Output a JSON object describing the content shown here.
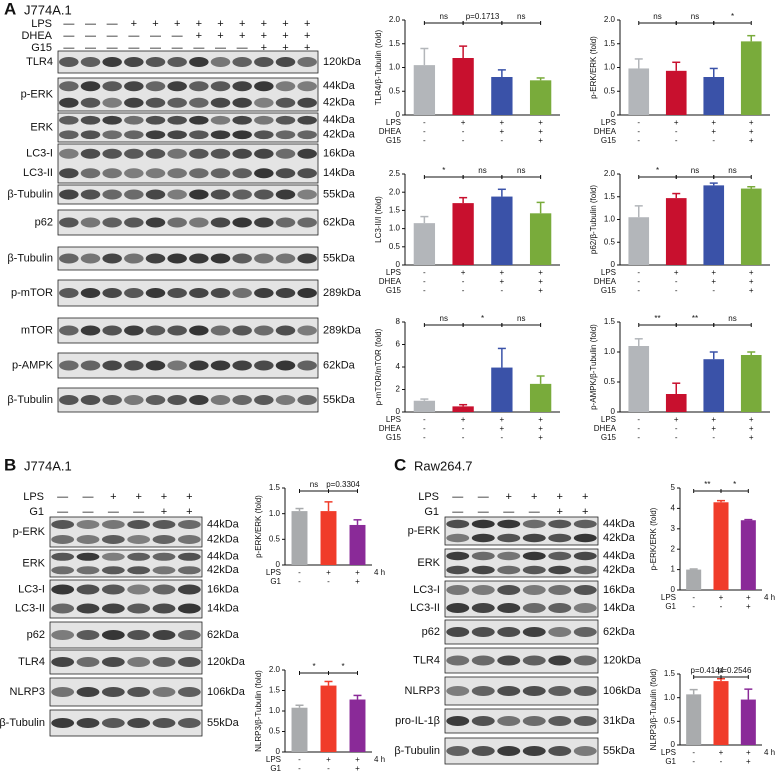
{
  "panels": [
    {
      "label": "A",
      "cell_line": "J774A.1",
      "conditions": [
        {
          "name": "LPS",
          "signs": [
            "—",
            "—",
            "—",
            "+",
            "+",
            "+",
            "+",
            "+",
            "+",
            "+",
            "+",
            "+"
          ]
        },
        {
          "name": "DHEA",
          "signs": [
            "—",
            "—",
            "—",
            "—",
            "—",
            "—",
            "+",
            "+",
            "+",
            "+",
            "+",
            "+"
          ]
        },
        {
          "name": "G15",
          "signs": [
            "—",
            "—",
            "—",
            "—",
            "—",
            "—",
            "—",
            "—",
            "—",
            "+",
            "+",
            "+"
          ]
        }
      ],
      "blots": [
        {
          "proteins": [
            "TLR4"
          ],
          "sizes": [
            "120kDa"
          ]
        },
        {
          "proteins": [
            "p-ERK"
          ],
          "sizes": [
            "44kDa",
            "42kDa"
          ]
        },
        {
          "proteins": [
            "ERK"
          ],
          "sizes": [
            "44kDa",
            "42kDa"
          ]
        },
        {
          "proteins": [
            "LC3-I",
            "LC3-II"
          ],
          "sizes": [
            "16kDa",
            "14kDa"
          ]
        },
        {
          "proteins": [
            "β-Tubulin"
          ],
          "sizes": [
            "55kDa"
          ]
        },
        {
          "proteins": [
            "p62"
          ],
          "sizes": [
            "62kDa"
          ]
        },
        {
          "proteins": [
            "β-Tubulin"
          ],
          "sizes": [
            "55kDa"
          ]
        },
        {
          "proteins": [
            "p-mTOR"
          ],
          "sizes": [
            "289kDa"
          ]
        },
        {
          "proteins": [
            "mTOR"
          ],
          "sizes": [
            "289kDa"
          ]
        },
        {
          "proteins": [
            "p-AMPK"
          ],
          "sizes": [
            "62kDa"
          ]
        },
        {
          "proteins": [
            "β-Tubulin"
          ],
          "sizes": [
            "55kDa"
          ]
        }
      ],
      "charts": [
        {
          "type": "bar",
          "ylabel": "TLR4/β-Tubulin (fold)",
          "ylim": [
            0,
            2
          ],
          "yticks": [
            0,
            0.5,
            {
              "value": 1,
              "label": "1.0"
            },
            1.5,
            {
              "value": 2,
              "label": "2.0"
            }
          ],
          "colors": [
            "#b3b6ba",
            "#c8102e",
            "#3a52a8",
            "#79ab3b"
          ],
          "values": [
            1.05,
            1.2,
            0.8,
            0.73
          ],
          "errors": [
            0.35,
            0.25,
            0.15,
            0.05
          ],
          "significance": [
            "ns",
            "p=0.1713",
            "ns"
          ],
          "conditions": [
            {
              "name": "LPS",
              "signs": [
                "-",
                "+",
                "+",
                "+"
              ]
            },
            {
              "name": "DHEA",
              "signs": [
                "-",
                "-",
                "+",
                "+"
              ]
            },
            {
              "name": "G15",
              "signs": [
                "-",
                "-",
                "-",
                "+"
              ]
            }
          ]
        },
        {
          "type": "bar",
          "ylabel": "p-ERK/ERK (fold)",
          "ylim": [
            0,
            2
          ],
          "yticks": [
            0,
            0.5,
            {
              "value": 1,
              "label": "1.0"
            },
            1.5,
            {
              "value": 2,
              "label": "2.0"
            }
          ],
          "colors": [
            "#b3b6ba",
            "#c8102e",
            "#3a52a8",
            "#79ab3b"
          ],
          "values": [
            0.98,
            0.93,
            0.8,
            1.55
          ],
          "errors": [
            0.2,
            0.18,
            0.18,
            0.12
          ],
          "significance": [
            "ns",
            "ns",
            "*"
          ],
          "conditions": [
            {
              "name": "LPS",
              "signs": [
                "-",
                "+",
                "+",
                "+"
              ]
            },
            {
              "name": "DHEA",
              "signs": [
                "-",
                "-",
                "+",
                "+"
              ]
            },
            {
              "name": "G15",
              "signs": [
                "-",
                "-",
                "-",
                "+"
              ]
            }
          ]
        },
        {
          "type": "bar",
          "ylabel": "LC3-II/I (fold)",
          "ylim": [
            0,
            2.5
          ],
          "yticks": [
            0,
            0.5,
            {
              "value": 1,
              "label": "1.0"
            },
            1.5,
            {
              "value": 2,
              "label": "2.0"
            },
            2.5
          ],
          "colors": [
            "#b3b6ba",
            "#c8102e",
            "#3a52a8",
            "#79ab3b"
          ],
          "values": [
            1.15,
            1.7,
            1.88,
            1.42
          ],
          "errors": [
            0.18,
            0.15,
            0.2,
            0.3
          ],
          "significance": [
            "*",
            "ns",
            "ns"
          ],
          "conditions": [
            {
              "name": "LPS",
              "signs": [
                "-",
                "+",
                "+",
                "+"
              ]
            },
            {
              "name": "DHEA",
              "signs": [
                "-",
                "-",
                "+",
                "+"
              ]
            },
            {
              "name": "G15",
              "signs": [
                "-",
                "-",
                "-",
                "+"
              ]
            }
          ]
        },
        {
          "type": "bar",
          "ylabel": "p62/β-Tubulin (fold)",
          "ylim": [
            0,
            2
          ],
          "yticks": [
            0,
            0.5,
            {
              "value": 1,
              "label": "1.0"
            },
            1.5,
            {
              "value": 2,
              "label": "2.0"
            }
          ],
          "colors": [
            "#b3b6ba",
            "#c8102e",
            "#3a52a8",
            "#79ab3b"
          ],
          "values": [
            1.05,
            1.47,
            1.75,
            1.68
          ],
          "errors": [
            0.25,
            0.1,
            0.05,
            0.04
          ],
          "significance": [
            "*",
            "ns",
            "ns"
          ],
          "conditions": [
            {
              "name": "LPS",
              "signs": [
                "-",
                "+",
                "+",
                "+"
              ]
            },
            {
              "name": "DHEA",
              "signs": [
                "-",
                "-",
                "+",
                "+"
              ]
            },
            {
              "name": "G15",
              "signs": [
                "-",
                "-",
                "-",
                "+"
              ]
            }
          ]
        },
        {
          "type": "bar",
          "ylabel": "p-mTOR/mTOR (fold)",
          "ylim": [
            0,
            8
          ],
          "yticks": [
            0,
            2,
            4,
            6,
            8
          ],
          "colors": [
            "#b3b6ba",
            "#c8102e",
            "#3a52a8",
            "#79ab3b"
          ],
          "values": [
            1.0,
            0.5,
            3.95,
            2.5
          ],
          "errors": [
            0.15,
            0.15,
            1.7,
            0.7
          ],
          "significance": [
            "ns",
            "*",
            "ns"
          ],
          "conditions": [
            {
              "name": "LPS",
              "signs": [
                "-",
                "+",
                "+",
                "+"
              ]
            },
            {
              "name": "DHEA",
              "signs": [
                "-",
                "-",
                "+",
                "+"
              ]
            },
            {
              "name": "G15",
              "signs": [
                "-",
                "-",
                "-",
                "+"
              ]
            }
          ]
        },
        {
          "type": "bar",
          "ylabel": "p-AMPK/β-Tubulin (fold)",
          "ylim": [
            0,
            1.5
          ],
          "yticks": [
            0,
            0.5,
            {
              "value": 1,
              "label": "1.0"
            },
            1.5
          ],
          "colors": [
            "#b3b6ba",
            "#c8102e",
            "#3a52a8",
            "#79ab3b"
          ],
          "values": [
            1.1,
            0.3,
            0.88,
            0.95
          ],
          "errors": [
            0.12,
            0.18,
            0.12,
            0.05
          ],
          "significance": [
            "**",
            "**",
            "ns"
          ],
          "conditions": [
            {
              "name": "LPS",
              "signs": [
                "-",
                "+",
                "+",
                "+"
              ]
            },
            {
              "name": "DHEA",
              "signs": [
                "-",
                "-",
                "+",
                "+"
              ]
            },
            {
              "name": "G15",
              "signs": [
                "-",
                "-",
                "-",
                "+"
              ]
            }
          ]
        }
      ]
    },
    {
      "label": "B",
      "cell_line": "J774A.1",
      "conditions": [
        {
          "name": "LPS",
          "signs": [
            "—",
            "—",
            "+",
            "+",
            "+",
            "+"
          ]
        },
        {
          "name": "G1",
          "signs": [
            "—",
            "—",
            "—",
            "—",
            "+",
            "+"
          ]
        }
      ],
      "blots": [
        {
          "proteins": [
            "p-ERK"
          ],
          "sizes": [
            "44kDa",
            "42kDa"
          ]
        },
        {
          "proteins": [
            "ERK"
          ],
          "sizes": [
            "44kDa",
            "42kDa"
          ]
        },
        {
          "proteins": [
            "LC3-I",
            "LC3-II"
          ],
          "sizes": [
            "16kDa",
            "14kDa"
          ]
        },
        {
          "proteins": [
            "p62"
          ],
          "sizes": [
            "62kDa"
          ]
        },
        {
          "proteins": [
            "TLR4"
          ],
          "sizes": [
            "120kDa"
          ]
        },
        {
          "proteins": [
            "NLRP3"
          ],
          "sizes": [
            "106kDa"
          ]
        },
        {
          "proteins": [
            "β-Tubulin"
          ],
          "sizes": [
            "55kDa"
          ]
        }
      ],
      "charts": [
        {
          "type": "bar",
          "ylabel": "p-ERK/ERK (fold)",
          "ylim": [
            0,
            1.5
          ],
          "yticks": [
            0,
            0.5,
            {
              "value": 1,
              "label": "1.0"
            },
            1.5
          ],
          "colors": [
            "#a9abad",
            "#f03c2a",
            "#8a2a98"
          ],
          "values": [
            1.05,
            1.05,
            0.78
          ],
          "errors": [
            0.05,
            0.18,
            0.1
          ],
          "significance": [
            "ns",
            "p=0.3304"
          ],
          "time": "4 h",
          "conditions": [
            {
              "name": "LPS",
              "signs": [
                "-",
                "+",
                "+"
              ]
            },
            {
              "name": "G1",
              "signs": [
                "-",
                "-",
                "+"
              ]
            }
          ]
        },
        {
          "type": "bar",
          "ylabel": "NLRP3/β-Tubulin (fold)",
          "ylim": [
            0,
            2
          ],
          "yticks": [
            0,
            0.5,
            {
              "value": 1,
              "label": "1.0"
            },
            1.5,
            {
              "value": 2,
              "label": "2.0"
            }
          ],
          "colors": [
            "#a9abad",
            "#f03c2a",
            "#8a2a98"
          ],
          "values": [
            1.08,
            1.62,
            1.28
          ],
          "errors": [
            0.06,
            0.1,
            0.1
          ],
          "significance": [
            "*",
            "*"
          ],
          "time": "4 h",
          "conditions": [
            {
              "name": "LPS",
              "signs": [
                "-",
                "+",
                "+"
              ]
            },
            {
              "name": "G1",
              "signs": [
                "-",
                "-",
                "+"
              ]
            }
          ]
        }
      ]
    },
    {
      "label": "C",
      "cell_line": "Raw264.7",
      "conditions": [
        {
          "name": "LPS",
          "signs": [
            "—",
            "—",
            "+",
            "+",
            "+",
            "+"
          ]
        },
        {
          "name": "G1",
          "signs": [
            "—",
            "—",
            "—",
            "—",
            "+",
            "+"
          ]
        }
      ],
      "blots": [
        {
          "proteins": [
            "p-ERK"
          ],
          "sizes": [
            "44kDa",
            "42kDa"
          ]
        },
        {
          "proteins": [
            "ERK"
          ],
          "sizes": [
            "44kDa",
            "42kDa"
          ]
        },
        {
          "proteins": [
            "LC3-I",
            "LC3-II"
          ],
          "sizes": [
            "16kDa",
            "14kDa"
          ]
        },
        {
          "proteins": [
            "p62"
          ],
          "sizes": [
            "62kDa"
          ]
        },
        {
          "proteins": [
            "TLR4"
          ],
          "sizes": [
            "120kDa"
          ]
        },
        {
          "proteins": [
            "NLRP3"
          ],
          "sizes": [
            "106kDa"
          ]
        },
        {
          "proteins": [
            "pro-IL-1β"
          ],
          "sizes": [
            "31kDa"
          ]
        },
        {
          "proteins": [
            "β-Tubulin"
          ],
          "sizes": [
            "55kDa"
          ]
        }
      ],
      "charts": [
        {
          "type": "bar",
          "ylabel": "p-ERK/ERK (fold)",
          "ylim": [
            0,
            5
          ],
          "yticks": [
            0,
            1,
            2,
            3,
            4,
            5
          ],
          "colors": [
            "#a9abad",
            "#f03c2a",
            "#8a2a98"
          ],
          "values": [
            1.0,
            4.3,
            3.42
          ],
          "errors": [
            0.03,
            0.08,
            0.03
          ],
          "significance": [
            "**",
            "*"
          ],
          "time": "4 h",
          "conditions": [
            {
              "name": "LPS",
              "signs": [
                "-",
                "+",
                "+"
              ]
            },
            {
              "name": "G1",
              "signs": [
                "-",
                "-",
                "+"
              ]
            }
          ]
        },
        {
          "type": "bar",
          "ylabel": "NLRP3/β-Tubulin (fold)",
          "ylim": [
            0,
            1.5
          ],
          "yticks": [
            0,
            0.5,
            {
              "value": 1,
              "label": "1.0"
            },
            1.5
          ],
          "colors": [
            "#a9abad",
            "#f03c2a",
            "#8a2a98"
          ],
          "values": [
            1.07,
            1.35,
            0.96
          ],
          "errors": [
            0.1,
            0.05,
            0.22
          ],
          "significance": [
            "p=0.4144",
            "p=0.2546"
          ],
          "time": "4 h",
          "conditions": [
            {
              "name": "LPS",
              "signs": [
                "-",
                "+",
                "+"
              ]
            },
            {
              "name": "G1",
              "signs": [
                "-",
                "-",
                "+"
              ]
            }
          ]
        }
      ]
    }
  ]
}
